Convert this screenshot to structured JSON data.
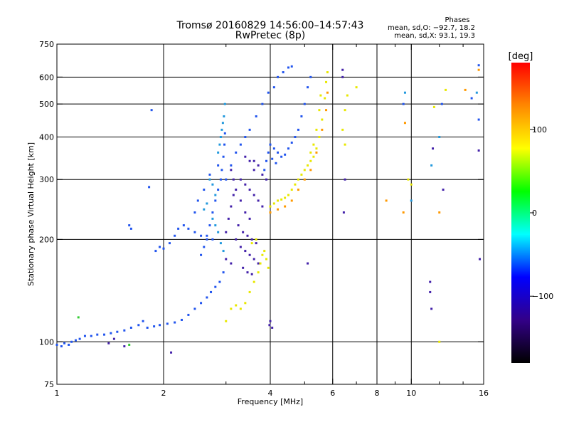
{
  "chart_data": {
    "type": "scatter",
    "title": "Tromsø 20160829 14:56:00–14:57:43",
    "subtitle": "RwPretec (8p)",
    "xlabel": "Frequency [MHz]",
    "ylabel": "Stationary phase Virtual Height [km]",
    "xscale": "log",
    "yscale": "log",
    "xlim": [
      1,
      16
    ],
    "ylim": [
      75,
      750
    ],
    "x_ticks": [
      1,
      2,
      4,
      6,
      8,
      10,
      16
    ],
    "x_tick_labels": [
      "1",
      "2",
      "4",
      "6",
      "8",
      "10",
      "16"
    ],
    "x_gridlines": [
      2,
      4,
      6,
      8,
      10
    ],
    "y_ticks": [
      75,
      100,
      200,
      300,
      400,
      500,
      600,
      750
    ],
    "y_tick_labels": [
      "75",
      "100",
      "200",
      "300",
      "400",
      "500",
      "600",
      "750"
    ],
    "y_gridlines": [
      100,
      200,
      300,
      400,
      500,
      600
    ],
    "grid": true,
    "phase_stats": {
      "title": "Phases",
      "line_o": "mean, sd,O: −92.7, 18.2",
      "line_x": "mean, sd,X:  93.1, 19.3"
    },
    "colorbar": {
      "label": "[deg]",
      "range": [
        -180,
        180
      ],
      "ticks": [
        100,
        0,
        -100
      ],
      "tick_labels": [
        "100",
        "0",
        "−100"
      ],
      "colors": [
        "#ff0000",
        "#ff8800",
        "#ffff00",
        "#00ff00",
        "#00ffff",
        "#0000ff",
        "#330088",
        "#000000"
      ]
    },
    "series": [
      {
        "phase": -92,
        "color": "#2255ee",
        "points": [
          [
            1.0,
            98
          ],
          [
            1.03,
            97
          ],
          [
            1.05,
            99
          ],
          [
            1.08,
            98
          ],
          [
            1.1,
            100
          ],
          [
            1.13,
            101
          ],
          [
            1.16,
            102
          ],
          [
            1.2,
            104
          ],
          [
            1.25,
            104
          ],
          [
            1.3,
            105
          ],
          [
            1.36,
            105
          ],
          [
            1.42,
            106
          ],
          [
            1.48,
            107
          ],
          [
            1.55,
            108
          ],
          [
            1.62,
            110
          ],
          [
            1.7,
            112
          ],
          [
            1.75,
            115
          ],
          [
            1.8,
            110
          ],
          [
            1.88,
            111
          ],
          [
            1.95,
            112
          ],
          [
            2.05,
            113
          ],
          [
            2.15,
            114
          ],
          [
            2.25,
            116
          ],
          [
            2.35,
            120
          ],
          [
            2.45,
            125
          ],
          [
            2.55,
            130
          ],
          [
            2.65,
            135
          ],
          [
            2.72,
            140
          ],
          [
            2.8,
            145
          ],
          [
            2.88,
            150
          ],
          [
            2.95,
            160
          ],
          [
            1.9,
            185
          ],
          [
            1.95,
            190
          ],
          [
            2.0,
            188
          ],
          [
            2.08,
            195
          ],
          [
            2.15,
            205
          ],
          [
            2.2,
            215
          ],
          [
            2.28,
            220
          ],
          [
            2.35,
            215
          ],
          [
            2.45,
            210
          ],
          [
            2.55,
            205
          ],
          [
            2.65,
            200
          ],
          [
            2.75,
            200
          ],
          [
            2.55,
            180
          ],
          [
            2.6,
            190
          ],
          [
            2.65,
            205
          ],
          [
            2.7,
            220
          ],
          [
            2.75,
            240
          ],
          [
            2.8,
            260
          ],
          [
            2.85,
            280
          ],
          [
            2.9,
            300
          ],
          [
            2.92,
            320
          ],
          [
            2.95,
            350
          ],
          [
            2.97,
            380
          ],
          [
            2.98,
            410
          ],
          [
            1.6,
            220
          ],
          [
            1.62,
            215
          ],
          [
            1.85,
            480
          ],
          [
            1.82,
            285
          ],
          [
            2.45,
            240
          ],
          [
            2.5,
            260
          ],
          [
            2.6,
            280
          ],
          [
            2.7,
            310
          ],
          [
            2.85,
            330
          ],
          [
            3.0,
            300
          ],
          [
            3.1,
            330
          ],
          [
            3.2,
            360
          ],
          [
            3.3,
            380
          ],
          [
            3.4,
            400
          ],
          [
            3.5,
            420
          ],
          [
            3.65,
            460
          ],
          [
            3.8,
            500
          ],
          [
            3.95,
            540
          ],
          [
            4.1,
            560
          ],
          [
            4.2,
            600
          ],
          [
            4.35,
            620
          ],
          [
            4.5,
            640
          ],
          [
            4.6,
            645
          ],
          [
            4.0,
            380
          ],
          [
            4.1,
            370
          ],
          [
            4.2,
            360
          ],
          [
            4.3,
            350
          ],
          [
            4.4,
            355
          ],
          [
            4.5,
            370
          ],
          [
            4.6,
            385
          ],
          [
            4.7,
            400
          ],
          [
            4.8,
            420
          ],
          [
            4.9,
            460
          ],
          [
            5.0,
            500
          ],
          [
            5.1,
            560
          ],
          [
            5.2,
            600
          ],
          [
            3.85,
            320
          ],
          [
            3.9,
            340
          ],
          [
            3.95,
            360
          ],
          [
            4.05,
            345
          ],
          [
            4.15,
            335
          ],
          [
            9.5,
            500
          ],
          [
            12.2,
            500
          ],
          [
            14.8,
            520
          ],
          [
            15.5,
            650
          ],
          [
            15.5,
            450
          ]
        ]
      },
      {
        "phase": -130,
        "color": "#4422aa",
        "points": [
          [
            3.1,
            320
          ],
          [
            3.15,
            300
          ],
          [
            3.2,
            280
          ],
          [
            3.3,
            260
          ],
          [
            3.4,
            240
          ],
          [
            3.5,
            230
          ],
          [
            3.3,
            300
          ],
          [
            3.4,
            290
          ],
          [
            3.5,
            280
          ],
          [
            3.6,
            270
          ],
          [
            3.7,
            260
          ],
          [
            3.8,
            250
          ],
          [
            3.2,
            200
          ],
          [
            3.3,
            190
          ],
          [
            3.4,
            185
          ],
          [
            3.5,
            180
          ],
          [
            3.6,
            175
          ],
          [
            3.7,
            170
          ],
          [
            3.25,
            220
          ],
          [
            3.35,
            210
          ],
          [
            3.45,
            205
          ],
          [
            3.55,
            200
          ],
          [
            3.65,
            195
          ],
          [
            3.0,
            210
          ],
          [
            3.05,
            230
          ],
          [
            3.1,
            250
          ],
          [
            3.15,
            270
          ],
          [
            3.6,
            340
          ],
          [
            3.7,
            330
          ],
          [
            3.8,
            310
          ],
          [
            3.9,
            300
          ],
          [
            3.4,
            350
          ],
          [
            3.5,
            340
          ],
          [
            3.6,
            320
          ],
          [
            3.35,
            165
          ],
          [
            3.45,
            160
          ],
          [
            3.55,
            158
          ],
          [
            3.0,
            175
          ],
          [
            3.1,
            170
          ],
          [
            1.4,
            99
          ],
          [
            1.45,
            102
          ],
          [
            1.55,
            97
          ],
          [
            2.1,
            93
          ],
          [
            3.98,
            112
          ],
          [
            4.0,
            115
          ],
          [
            4.05,
            110
          ],
          [
            5.1,
            170
          ],
          [
            6.4,
            630
          ],
          [
            6.4,
            600
          ],
          [
            6.5,
            300
          ],
          [
            6.45,
            240
          ],
          [
            11.3,
            150
          ],
          [
            11.3,
            140
          ],
          [
            11.4,
            125
          ],
          [
            11.5,
            370
          ],
          [
            12.3,
            280
          ],
          [
            15.5,
            365
          ],
          [
            15.6,
            175
          ]
        ]
      },
      {
        "phase": -75,
        "color": "#2299dd",
        "points": [
          [
            2.85,
            360
          ],
          [
            2.88,
            380
          ],
          [
            2.9,
            400
          ],
          [
            2.92,
            420
          ],
          [
            2.94,
            440
          ],
          [
            2.96,
            460
          ],
          [
            2.98,
            500
          ],
          [
            2.7,
            300
          ],
          [
            2.75,
            290
          ],
          [
            2.8,
            270
          ],
          [
            2.65,
            255
          ],
          [
            2.6,
            245
          ],
          [
            2.75,
            230
          ],
          [
            2.8,
            220
          ],
          [
            2.85,
            210
          ],
          [
            2.9,
            195
          ],
          [
            2.95,
            185
          ],
          [
            9.6,
            540
          ],
          [
            10.0,
            260
          ],
          [
            11.4,
            330
          ],
          [
            12.0,
            400
          ],
          [
            15.3,
            540
          ]
        ]
      },
      {
        "phase": 95,
        "color": "#e8e800",
        "points": [
          [
            4.0,
            250
          ],
          [
            4.1,
            255
          ],
          [
            4.2,
            260
          ],
          [
            4.3,
            262
          ],
          [
            4.4,
            265
          ],
          [
            4.5,
            270
          ],
          [
            4.6,
            280
          ],
          [
            4.7,
            290
          ],
          [
            4.8,
            300
          ],
          [
            4.9,
            310
          ],
          [
            5.0,
            320
          ],
          [
            5.1,
            330
          ],
          [
            5.2,
            340
          ],
          [
            5.3,
            350
          ],
          [
            5.4,
            370
          ],
          [
            5.5,
            400
          ],
          [
            5.6,
            450
          ],
          [
            5.7,
            520
          ],
          [
            5.75,
            580
          ],
          [
            5.8,
            620
          ],
          [
            5.2,
            360
          ],
          [
            5.3,
            380
          ],
          [
            5.4,
            420
          ],
          [
            5.5,
            480
          ],
          [
            5.55,
            530
          ],
          [
            3.3,
            125
          ],
          [
            3.4,
            130
          ],
          [
            3.5,
            140
          ],
          [
            3.6,
            150
          ],
          [
            3.7,
            160
          ],
          [
            3.75,
            170
          ],
          [
            3.8,
            180
          ],
          [
            3.85,
            185
          ],
          [
            3.9,
            175
          ],
          [
            3.95,
            165
          ],
          [
            3.55,
            195
          ],
          [
            3.65,
            200
          ],
          [
            3.1,
            125
          ],
          [
            3.2,
            128
          ],
          [
            3.0,
            115
          ],
          [
            6.4,
            420
          ],
          [
            6.5,
            380
          ],
          [
            6.6,
            530
          ],
          [
            7.0,
            560
          ],
          [
            6.5,
            480
          ],
          [
            9.8,
            300
          ],
          [
            10.0,
            290
          ],
          [
            11.6,
            490
          ],
          [
            12.5,
            550
          ],
          [
            12.0,
            100
          ]
        ]
      },
      {
        "phase": 125,
        "color": "#ff9900",
        "points": [
          [
            4.0,
            240
          ],
          [
            4.2,
            245
          ],
          [
            4.4,
            250
          ],
          [
            4.6,
            260
          ],
          [
            4.8,
            280
          ],
          [
            5.0,
            300
          ],
          [
            5.2,
            320
          ],
          [
            5.4,
            360
          ],
          [
            5.6,
            420
          ],
          [
            5.75,
            480
          ],
          [
            5.8,
            540
          ],
          [
            8.5,
            260
          ],
          [
            9.5,
            240
          ],
          [
            9.6,
            440
          ],
          [
            12.0,
            240
          ],
          [
            14.2,
            550
          ],
          [
            15.5,
            630
          ]
        ]
      },
      {
        "phase": 0,
        "color": "#33cc33",
        "points": [
          [
            1.15,
            118
          ],
          [
            1.6,
            98
          ]
        ]
      }
    ]
  }
}
